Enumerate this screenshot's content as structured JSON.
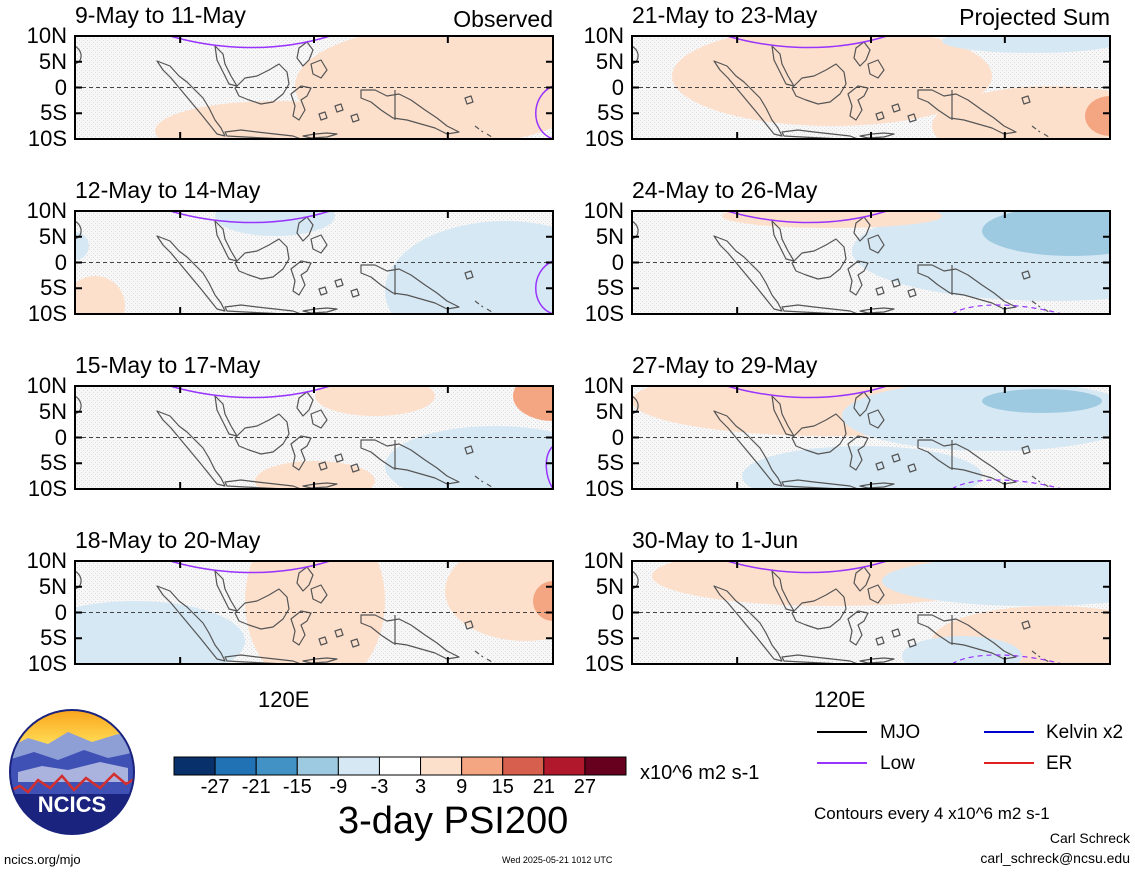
{
  "left_tag": "Observed",
  "right_tag": "Projected Sum",
  "lat_ticks": [
    "10N",
    "5N",
    "0",
    "5S",
    "10S"
  ],
  "x_axis_label": "120E",
  "panels": [
    {
      "title": "9-May to 11-May"
    },
    {
      "title": "12-May to 14-May"
    },
    {
      "title": "15-May to 17-May"
    },
    {
      "title": "18-May to 20-May"
    },
    {
      "title": "21-May to 23-May"
    },
    {
      "title": "24-May to 26-May"
    },
    {
      "title": "27-May to 29-May"
    },
    {
      "title": "30-May to 1-Jun"
    }
  ],
  "colorbar": {
    "colors": [
      "#08306b",
      "#2171b5",
      "#4292c6",
      "#9ecae1",
      "#d6e8f4",
      "#ffffff",
      "#fde0cc",
      "#f4a582",
      "#d6604d",
      "#b2182b",
      "#67001f"
    ],
    "labels": [
      "-27",
      "-21",
      "-15",
      "-9",
      "-3",
      "3",
      "9",
      "15",
      "21",
      "27"
    ],
    "units": "x10^6 m2 s-1",
    "title": "3-day PSI200"
  },
  "legend": [
    {
      "label": "MJO",
      "color": "#000000"
    },
    {
      "label": "Kelvin x2",
      "color": "#0000cc"
    },
    {
      "label": "Low",
      "color": "#9933ff"
    },
    {
      "label": "ER",
      "color": "#e02020"
    }
  ],
  "contour_note": "Contours every 4 x10^6 m2 s-1",
  "author": "Carl Schreck",
  "email": "carl_schreck@ncsu.edu",
  "site": "ncics.org/mjo",
  "timestamp": "Wed 2025-05-21 1012 UTC",
  "logo_text": "NCICS",
  "chart_data": {
    "type": "heatmap",
    "variable": "3-day PSI200",
    "units": "x10^6 m2 s-1",
    "y_ticks": [
      "10N",
      "5N",
      "0",
      "5S",
      "10S"
    ],
    "x_ticks": [
      "120E"
    ],
    "levels": [
      -27,
      -21,
      -15,
      -9,
      -3,
      3,
      9,
      15,
      21,
      27
    ],
    "panels": [
      "9-May to 11-May",
      "12-May to 14-May",
      "15-May to 17-May",
      "18-May to 20-May",
      "21-May to 23-May",
      "24-May to 26-May",
      "27-May to 29-May",
      "30-May to 1-Jun"
    ]
  }
}
